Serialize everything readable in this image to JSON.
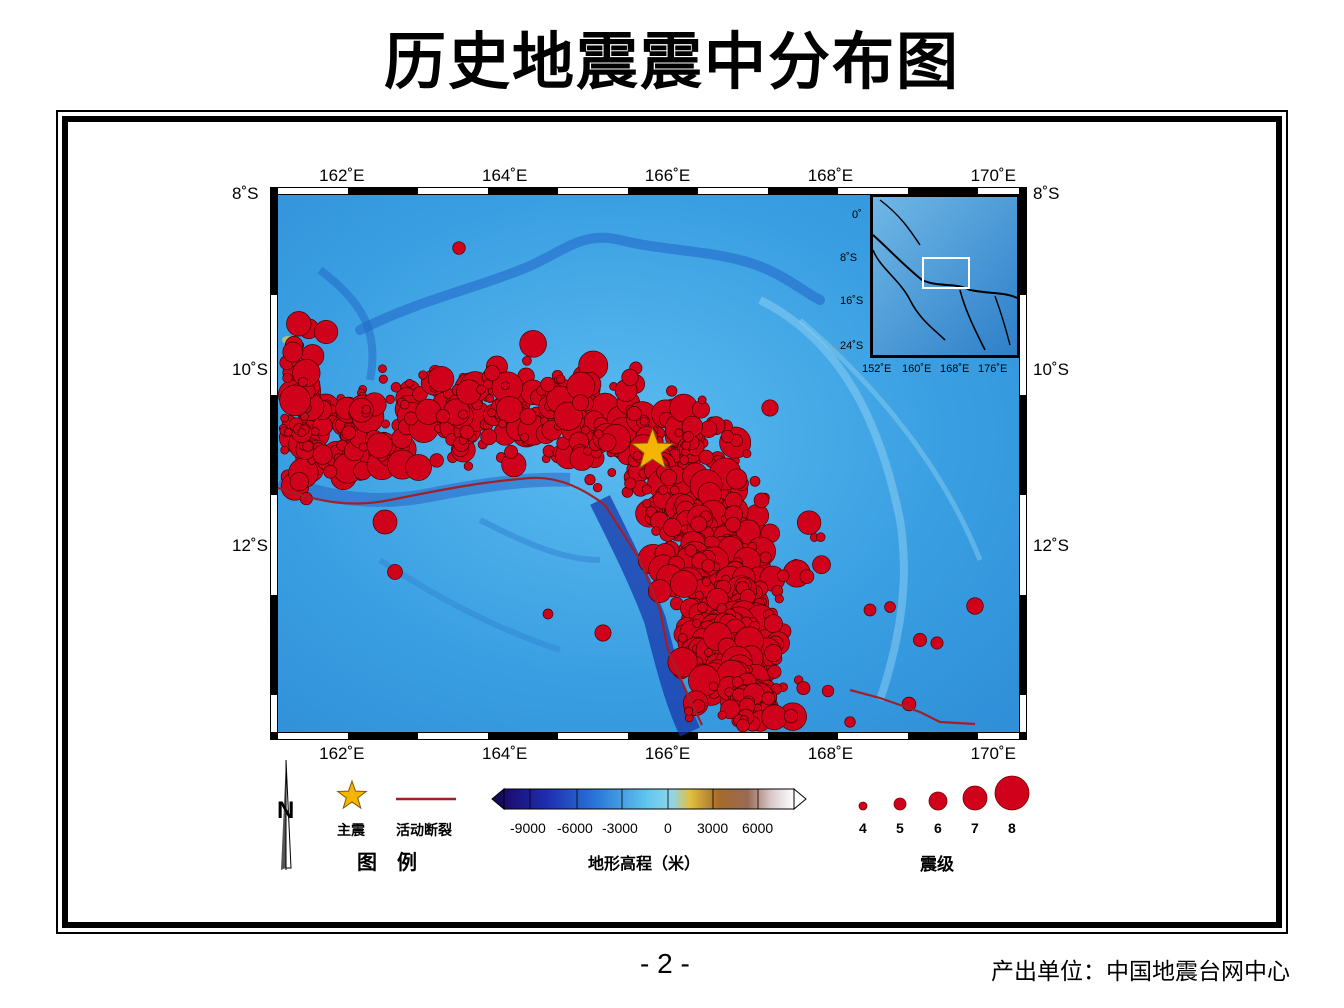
{
  "title": "历史地震震中分布图",
  "map": {
    "lon_ticks": [
      "162˚E",
      "164˚E",
      "166˚E",
      "168˚E",
      "170˚E"
    ],
    "lat_ticks": [
      "8˚S",
      "10˚S",
      "12˚S"
    ],
    "lon_range": [
      161.2,
      170.3
    ],
    "lat_range": [
      8.0,
      14.1
    ],
    "mainshock": {
      "lon": 165.8,
      "lat": 10.9
    },
    "inset": {
      "lat_ticks": [
        "0˚",
        "8˚S",
        "16˚S",
        "24˚S"
      ],
      "lon_ticks": [
        "152˚E",
        "160˚E",
        "168˚E",
        "176˚E"
      ]
    }
  },
  "legend": {
    "north": "N",
    "mainshock_label": "主震",
    "fault_label": "活动断裂",
    "legend_title": "图　例",
    "elevation_ticks": [
      "-9000",
      "-6000",
      "-3000",
      "0",
      "3000",
      "6000"
    ],
    "elevation_title": "地形高程（米）",
    "magnitude_ticks": [
      "4",
      "5",
      "6",
      "7",
      "8"
    ],
    "magnitude_title": "震级"
  },
  "colors": {
    "quake_fill": "#d0021b",
    "star_fill": "#f5b400",
    "fault": "#a0202a",
    "sea": "#3aa6e6"
  },
  "footer": {
    "page": "- 2 -",
    "source": "产出单位：中国地震台网中心"
  }
}
